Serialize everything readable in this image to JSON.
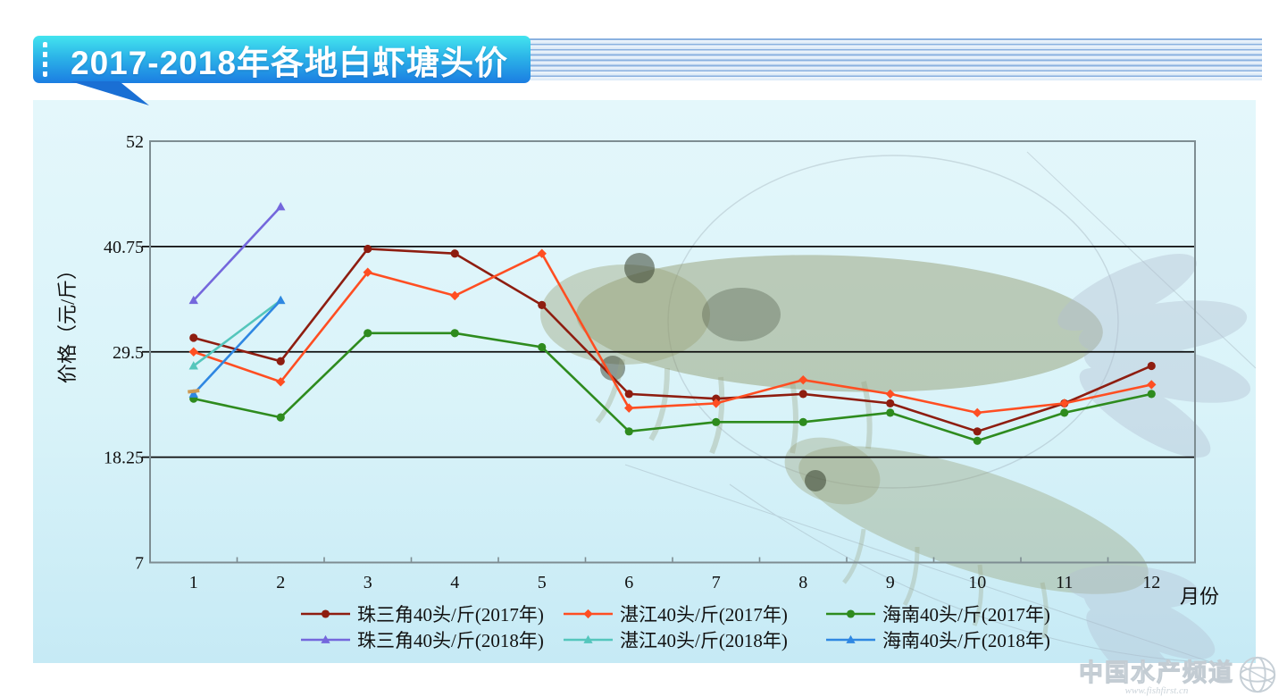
{
  "header": {
    "title": "2017-2018年各地白虾塘头价"
  },
  "watermark": {
    "brand": "中国水产频道",
    "url": "www.fishfirst.cn"
  },
  "chart_data": {
    "type": "line",
    "title": "",
    "xlabel": "月份",
    "ylabel": "价格（元/斤）",
    "x": [
      1,
      2,
      3,
      4,
      5,
      6,
      7,
      8,
      9,
      10,
      11,
      12
    ],
    "yticks": [
      7,
      18.25,
      29.5,
      40.75,
      52
    ],
    "gridlines": [
      18.25,
      29.5,
      40.75
    ],
    "ylim": [
      7,
      52
    ],
    "grid": "horizontal-only",
    "legend_position": "bottom",
    "series": [
      {
        "name": "珠三角40头/斤(2017年)",
        "color": "#8E1D10",
        "marker": "circle",
        "values": [
          31,
          28.5,
          40.5,
          40,
          34.5,
          25,
          24.5,
          25,
          24,
          21,
          24,
          28
        ]
      },
      {
        "name": "湛江40头/斤(2017年)",
        "color": "#FF4E22",
        "marker": "diamond",
        "values": [
          29.5,
          26.3,
          38,
          35.5,
          40,
          23.5,
          24,
          26.5,
          25,
          23,
          24,
          26
        ]
      },
      {
        "name": "海南40头/斤(2017年)",
        "color": "#2E8B1E",
        "marker": "circle",
        "values": [
          24.5,
          22.5,
          31.5,
          31.5,
          30,
          21,
          22,
          22,
          23,
          20,
          23,
          25
        ]
      },
      {
        "name": "珠三角40头/斤(2018年)",
        "color": "#7467DC",
        "marker": "triangle",
        "values": [
          35,
          45
        ]
      },
      {
        "name": "湛江40头/斤(2018年)",
        "color": "#54C6BC",
        "marker": "triangle",
        "values": [
          28,
          35
        ]
      },
      {
        "name": "海南40头/斤(2018年)",
        "color": "#2F87E2",
        "marker": "triangle",
        "values": [
          25,
          35
        ]
      }
    ],
    "annotations": [
      {
        "type": "dash-marker",
        "month": 1,
        "value": 25.3,
        "color": "#CE9A55"
      }
    ]
  }
}
